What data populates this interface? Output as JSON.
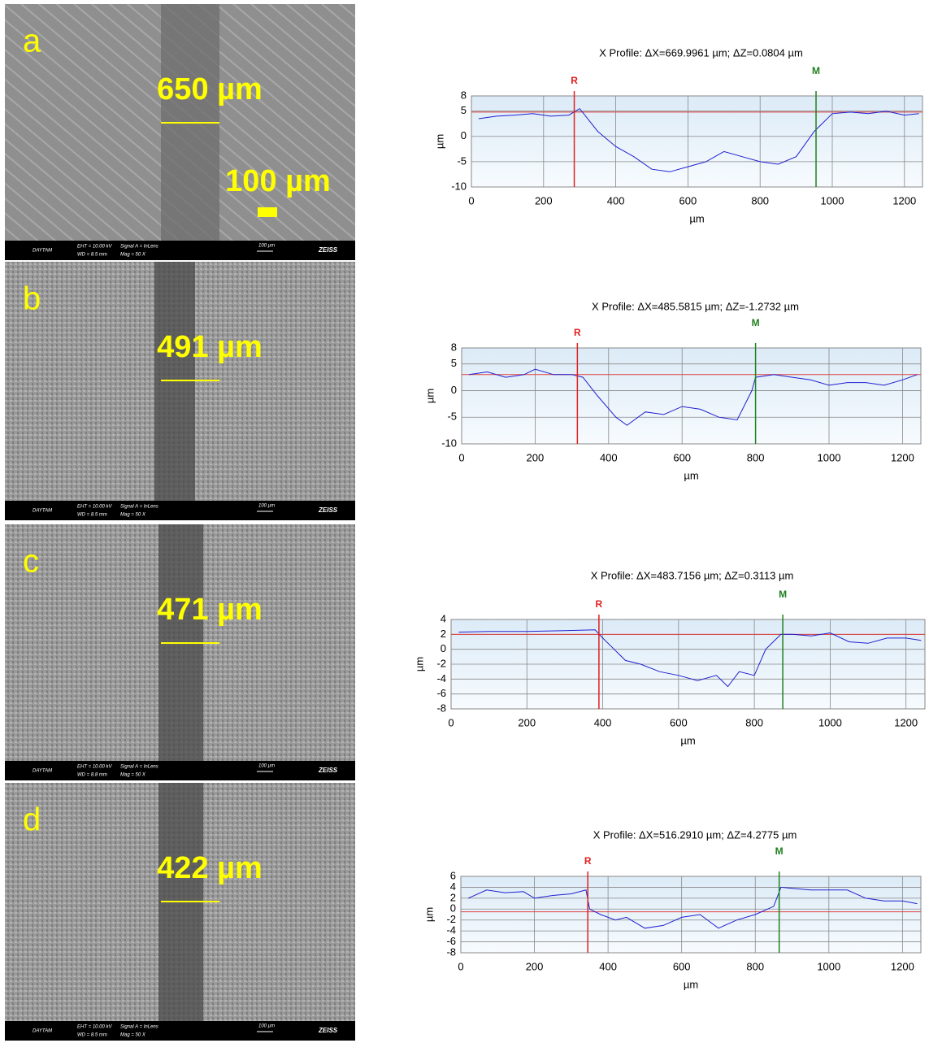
{
  "panels": [
    {
      "letter": "a",
      "width_label": "650 µm",
      "scale_label": "100 µm",
      "footer": [
        "DAYTAM",
        "EHT = 10.00 kV",
        "WD = 8.5 mm",
        "Signal A = InLens",
        "Mag = 50 X",
        "100 µm",
        "ZEISS"
      ]
    },
    {
      "letter": "b",
      "width_label": "491 µm",
      "footer": [
        "DAYTAM",
        "EHT = 10.00 kV",
        "WD = 8.5 mm",
        "Signal A = InLens",
        "Mag = 50 X",
        "100 µm",
        "ZEISS"
      ]
    },
    {
      "letter": "c",
      "width_label": "471 µm",
      "footer": [
        "DAYTAM",
        "EHT = 10.00 kV",
        "WD = 8.8 mm",
        "Signal A = InLens",
        "Mag = 50 X",
        "100 µm",
        "ZEISS"
      ]
    },
    {
      "letter": "d",
      "width_label": "422 µm",
      "footer": [
        "DAYTAM",
        "EHT = 10.00 kV",
        "WD = 8.5 mm",
        "Signal A = InLens",
        "Mag = 50 X",
        "100 µm",
        "ZEISS"
      ]
    }
  ],
  "chart_data": [
    {
      "type": "line",
      "title": "X Profile: ΔX=669.9961 µm; ΔZ=0.0804 µm",
      "x_label": "µm",
      "y_label": "µm",
      "x": [
        20,
        70,
        120,
        170,
        220,
        270,
        300,
        350,
        400,
        450,
        500,
        550,
        600,
        650,
        700,
        750,
        800,
        850,
        900,
        950,
        1000,
        1050,
        1100,
        1150,
        1200,
        1240
      ],
      "series": [
        {
          "color": "#2020d0",
          "values": [
            3.5,
            4,
            4.2,
            4.5,
            4,
            4.2,
            5.5,
            1,
            -2,
            -4,
            -6.5,
            -7,
            -6,
            -5,
            -3,
            -4,
            -5,
            -5.5,
            -4,
            1,
            4.5,
            4.8,
            4.5,
            5,
            4.2,
            4.5
          ]
        }
      ],
      "markers": [
        {
          "label": "R",
          "x": 285,
          "color": "#e02020"
        },
        {
          "label": "M",
          "x": 955,
          "color": "#208020"
        }
      ],
      "ref_y": 4.8,
      "xlim": [
        0,
        1250
      ],
      "xticks": [
        0,
        200,
        400,
        600,
        800,
        1000,
        1200
      ],
      "ylim": [
        -10,
        8
      ],
      "yticks": [
        -10,
        -5,
        0,
        5,
        8
      ],
      "grid": true
    },
    {
      "type": "line",
      "title": "X Profile: ΔX=485.5815 µm; ΔZ=-1.2732 µm",
      "x_label": "µm",
      "y_label": "µm",
      "x": [
        20,
        70,
        120,
        170,
        200,
        250,
        300,
        330,
        370,
        420,
        450,
        500,
        550,
        600,
        650,
        700,
        750,
        790,
        800,
        850,
        900,
        950,
        1000,
        1050,
        1100,
        1150,
        1200,
        1240
      ],
      "series": [
        {
          "color": "#2020d0",
          "values": [
            3,
            3.5,
            2.5,
            3,
            4,
            3,
            3,
            2.5,
            -1,
            -5,
            -6.5,
            -4,
            -4.5,
            -3,
            -3.5,
            -5,
            -5.5,
            0,
            2.5,
            3,
            2.5,
            2,
            1,
            1.5,
            1.5,
            1,
            2,
            3
          ]
        }
      ],
      "markers": [
        {
          "label": "R",
          "x": 315,
          "color": "#e02020"
        },
        {
          "label": "M",
          "x": 800,
          "color": "#208020"
        }
      ],
      "ref_y": 3,
      "xlim": [
        0,
        1250
      ],
      "xticks": [
        0,
        200,
        400,
        600,
        800,
        1000,
        1200
      ],
      "ylim": [
        -10,
        8
      ],
      "yticks": [
        -10,
        -5,
        0,
        5,
        8
      ],
      "grid": true
    },
    {
      "type": "line",
      "title": "X Profile: ΔX=483.7156 µm; ΔZ=0.3113 µm",
      "x_label": "µm",
      "y_label": "µm",
      "x": [
        20,
        100,
        200,
        300,
        380,
        400,
        430,
        460,
        500,
        550,
        600,
        650,
        700,
        730,
        760,
        800,
        830,
        870,
        900,
        950,
        1000,
        1050,
        1100,
        1150,
        1200,
        1240
      ],
      "series": [
        {
          "color": "#2020d0",
          "values": [
            2.3,
            2.4,
            2.4,
            2.5,
            2.6,
            1.5,
            0,
            -1.5,
            -2,
            -3,
            -3.5,
            -4.2,
            -3.5,
            -5,
            -3,
            -3.5,
            0,
            2,
            2,
            1.8,
            2.2,
            1,
            0.8,
            1.5,
            1.5,
            1.2
          ]
        }
      ],
      "markers": [
        {
          "label": "R",
          "x": 390,
          "color": "#e02020"
        },
        {
          "label": "M",
          "x": 875,
          "color": "#208020"
        }
      ],
      "ref_y": 2,
      "xlim": [
        0,
        1250
      ],
      "xticks": [
        0,
        200,
        400,
        600,
        800,
        1000,
        1200
      ],
      "ylim": [
        -8,
        4
      ],
      "yticks": [
        -8,
        -6,
        -4,
        -2,
        0,
        2,
        4
      ],
      "grid": true
    },
    {
      "type": "line",
      "title": "X Profile: ΔX=516.2910 µm; ΔZ=4.2775 µm",
      "x_label": "µm",
      "y_label": "µm",
      "x": [
        20,
        70,
        120,
        170,
        200,
        250,
        300,
        340,
        350,
        380,
        420,
        450,
        500,
        550,
        600,
        650,
        700,
        750,
        800,
        850,
        870,
        900,
        950,
        1000,
        1050,
        1100,
        1150,
        1200,
        1240
      ],
      "series": [
        {
          "color": "#2020d0",
          "values": [
            2,
            3.5,
            3,
            3.2,
            2,
            2.5,
            2.8,
            3.5,
            0,
            -1,
            -2,
            -1.5,
            -3.5,
            -3,
            -1.5,
            -1,
            -3.5,
            -2,
            -1,
            0.5,
            4,
            3.8,
            3.5,
            3.5,
            3.5,
            2,
            1.5,
            1.5,
            1
          ]
        }
      ],
      "markers": [
        {
          "label": "R",
          "x": 345,
          "color": "#e02020"
        },
        {
          "label": "M",
          "x": 865,
          "color": "#208020"
        }
      ],
      "ref_y": -0.5,
      "xlim": [
        0,
        1250
      ],
      "xticks": [
        0,
        200,
        400,
        600,
        800,
        1000,
        1200
      ],
      "ylim": [
        -8,
        6
      ],
      "yticks": [
        -8,
        -6,
        -4,
        -2,
        0,
        2,
        4,
        6
      ],
      "grid": true
    }
  ]
}
